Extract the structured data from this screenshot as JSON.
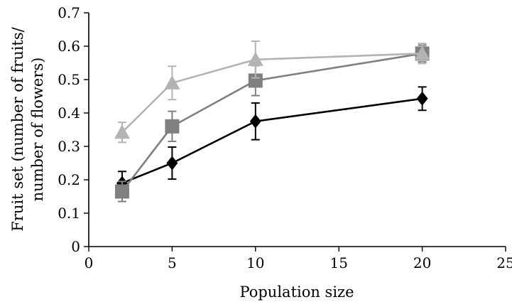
{
  "chart_data": {
    "type": "line",
    "xlabel": "Population size",
    "ylabel_lines": [
      "Fruit set (number of fruits/",
      "number of flowers)"
    ],
    "xlim": [
      0,
      25
    ],
    "ylim": [
      0,
      0.7
    ],
    "x_ticks": [
      "0",
      "5",
      "10",
      "15",
      "20",
      "25"
    ],
    "y_ticks": [
      "0",
      "0.1",
      "0.2",
      "0.3",
      "0.4",
      "0.5",
      "0.6",
      "0.7"
    ],
    "x": [
      2,
      5,
      10,
      20
    ],
    "grid": false,
    "series": [
      {
        "marker": "diamond",
        "color": "#000000",
        "values": [
          0.19,
          0.25,
          0.375,
          0.443
        ],
        "errors": [
          0.035,
          0.048,
          0.055,
          0.035
        ]
      },
      {
        "marker": "square",
        "color": "#7f7f7f",
        "values": [
          0.165,
          0.36,
          0.497,
          0.578
        ],
        "errors": [
          0.03,
          0.045,
          0.045,
          0.025
        ]
      },
      {
        "marker": "triangle",
        "color": "#b3b3b3",
        "values": [
          0.342,
          0.49,
          0.56,
          0.578
        ],
        "errors": [
          0.03,
          0.05,
          0.055,
          0.03
        ]
      }
    ]
  }
}
